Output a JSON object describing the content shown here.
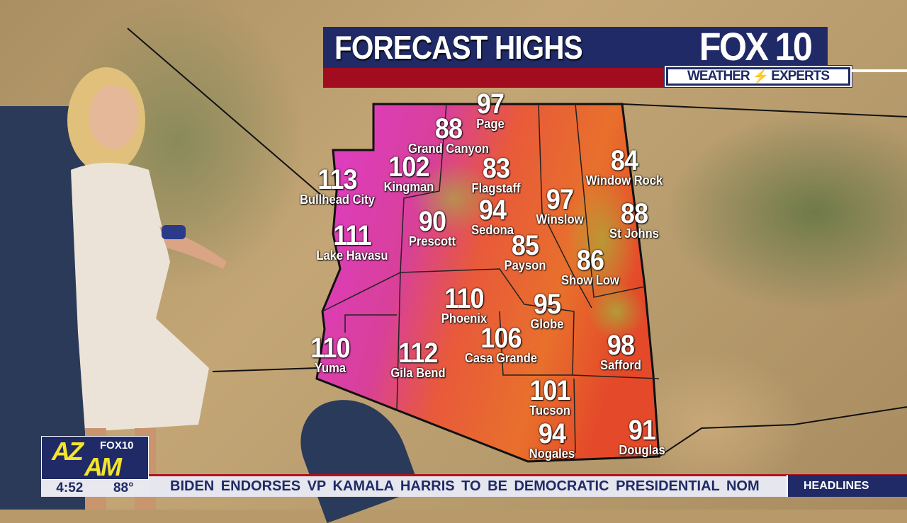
{
  "graphic": {
    "title": "FORECAST HIGHS",
    "station": "FOX 10",
    "brand": "WEATHER EXPERTS",
    "brand_left": "WEATHER",
    "brand_right": "EXPERTS"
  },
  "bug": {
    "show_az": "AZ",
    "show_am": "AM",
    "station": "FOX10",
    "time": "4:52",
    "temperature": "88°"
  },
  "ticker": {
    "headline": "BIDEN ENDORSES VP KAMALA HARRIS TO BE DEMOCRATIC PRESIDENTIAL NOM",
    "section": "HEADLINES"
  },
  "colors": {
    "navy": "#1f2a66",
    "red": "#a10d1e",
    "hot": "#e23cc8",
    "warm": "#e8622e",
    "mild": "#9ab83a"
  },
  "cities": [
    {
      "name": "Page",
      "high": "97"
    },
    {
      "name": "Grand Canyon",
      "high": "88"
    },
    {
      "name": "Kingman",
      "high": "102"
    },
    {
      "name": "Flagstaff",
      "high": "83"
    },
    {
      "name": "Bullhead City",
      "high": "113"
    },
    {
      "name": "Window Rock",
      "high": "84"
    },
    {
      "name": "Winslow",
      "high": "97"
    },
    {
      "name": "Sedona",
      "high": "94"
    },
    {
      "name": "Prescott",
      "high": "90"
    },
    {
      "name": "St Johns",
      "high": "88"
    },
    {
      "name": "Lake Havasu",
      "high": "111"
    },
    {
      "name": "Payson",
      "high": "85"
    },
    {
      "name": "Show Low",
      "high": "86"
    },
    {
      "name": "Phoenix",
      "high": "110"
    },
    {
      "name": "Globe",
      "high": "95"
    },
    {
      "name": "Casa Grande",
      "high": "106"
    },
    {
      "name": "Safford",
      "high": "98"
    },
    {
      "name": "Yuma",
      "high": "110"
    },
    {
      "name": "Gila Bend",
      "high": "112"
    },
    {
      "name": "Tucson",
      "high": "101"
    },
    {
      "name": "Nogales",
      "high": "94"
    },
    {
      "name": "Douglas",
      "high": "91"
    }
  ]
}
